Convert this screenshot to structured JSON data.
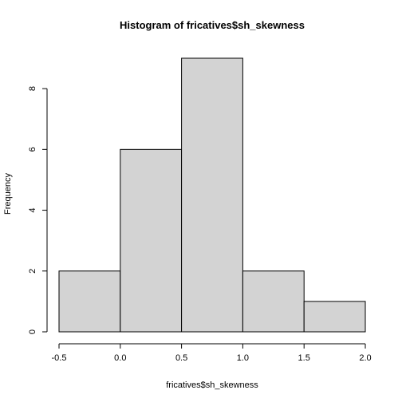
{
  "chart_data": {
    "type": "bar",
    "title": "Histogram of fricatives$sh_skewness",
    "xlabel": "fricatives$sh_skewness",
    "ylabel": "Frequency",
    "bins": [
      {
        "start": -0.5,
        "end": 0.0,
        "count": 2
      },
      {
        "start": 0.0,
        "end": 0.5,
        "count": 6
      },
      {
        "start": 0.5,
        "end": 1.0,
        "count": 9
      },
      {
        "start": 1.0,
        "end": 1.5,
        "count": 2
      },
      {
        "start": 1.5,
        "end": 2.0,
        "count": 1
      }
    ],
    "xlim": [
      -0.5,
      2.0
    ],
    "ylim": [
      0,
      9
    ],
    "x_ticks": [
      -0.5,
      0.0,
      0.5,
      1.0,
      1.5,
      2.0
    ],
    "x_tick_labels": [
      "-0.5",
      "0.0",
      "0.5",
      "1.0",
      "1.5",
      "2.0"
    ],
    "y_ticks": [
      0,
      2,
      4,
      6,
      8
    ],
    "y_tick_labels": [
      "0",
      "2",
      "4",
      "6",
      "8"
    ],
    "bar_fill": "#d3d3d3",
    "bar_stroke": "#000000",
    "grid": false,
    "legend": "none"
  }
}
